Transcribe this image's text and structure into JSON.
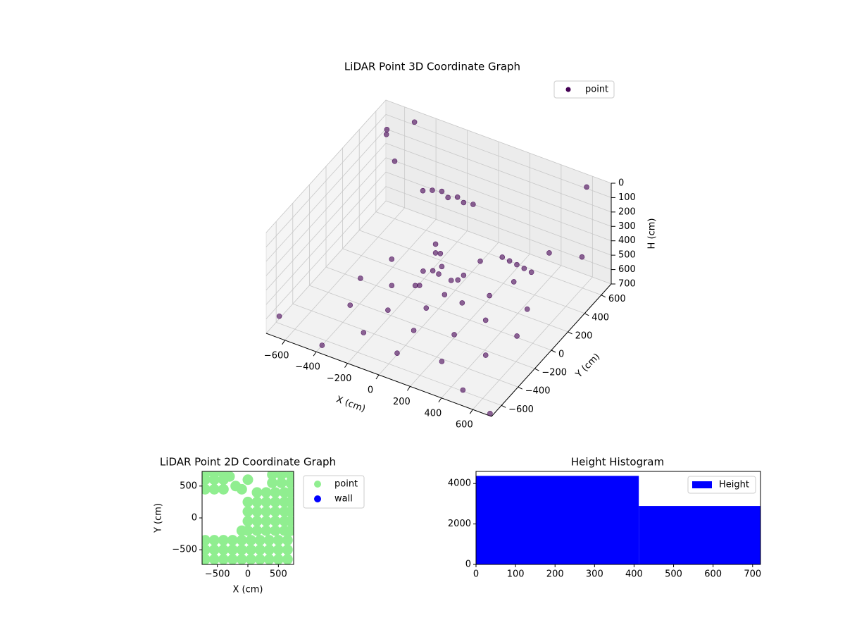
{
  "chart_data": [
    {
      "type": "scatter3d",
      "title": "LiDAR Point 3D Coordinate Graph",
      "x_label": "X (cm)",
      "y_label": "Y (cm)",
      "z_label": "H (cm)",
      "xlim": [
        -720,
        720
      ],
      "ylim": [
        -720,
        720
      ],
      "zlim": [
        700,
        0
      ],
      "xticks": [
        {
          "value": -600,
          "label": "−600"
        },
        {
          "value": -400,
          "label": "−400"
        },
        {
          "value": -200,
          "label": "−200"
        },
        0,
        200,
        400,
        600
      ],
      "yticks": [
        {
          "value": -600,
          "label": "−600"
        },
        {
          "value": -400,
          "label": "−400"
        },
        {
          "value": -200,
          "label": "−200"
        },
        0,
        200,
        400,
        600
      ],
      "zticks": [
        0,
        100,
        200,
        300,
        400,
        500,
        600,
        700
      ],
      "grid": true,
      "legend": "upper right",
      "series": [
        {
          "name": "point",
          "color": "#440154",
          "x": [
            500,
            433,
            250,
            0,
            -250,
            -433,
            -500,
            -433,
            -250,
            0,
            250,
            433,
            300,
            212,
            0,
            -212,
            -300,
            -212,
            0,
            212,
            150,
            0,
            -150,
            0,
            80,
            -80,
            -80,
            80,
            0,
            20,
            0,
            -20,
            -200,
            -150,
            -100,
            -50,
            0,
            -250,
            50,
            300,
            320,
            340,
            360,
            380,
            -650,
            -600,
            -500,
            600,
            -700,
            700,
            -600,
            600,
            650,
            -400,
            500
          ],
          "y": [
            0,
            250,
            433,
            500,
            433,
            250,
            0,
            -250,
            -433,
            -500,
            -433,
            -250,
            0,
            212,
            300,
            212,
            0,
            -212,
            -300,
            -212,
            0,
            150,
            0,
            -150,
            80,
            80,
            -80,
            -80,
            0,
            0,
            20,
            0,
            300,
            320,
            300,
            320,
            300,
            280,
            320,
            200,
            250,
            300,
            350,
            400,
            600,
            500,
            650,
            650,
            -600,
            -700,
            600,
            200,
            500,
            -650,
            -650
          ],
          "z": [
            690,
            690,
            690,
            690,
            690,
            690,
            690,
            690,
            690,
            690,
            690,
            690,
            660,
            660,
            660,
            660,
            660,
            660,
            660,
            660,
            600,
            600,
            600,
            600,
            520,
            520,
            520,
            520,
            460,
            400,
            330,
            260,
            150,
            150,
            160,
            150,
            155,
            160,
            160,
            350,
            400,
            450,
            500,
            550,
            100,
            50,
            20,
            30,
            650,
            700,
            300,
            200,
            400,
            700,
            650
          ]
        }
      ]
    },
    {
      "type": "scatter",
      "title": "LiDAR Point 2D Coordinate Graph",
      "x_label": "X (cm)",
      "y_label": "Y (cm)",
      "xlim": [
        -750,
        750
      ],
      "ylim": [
        -730,
        730
      ],
      "xticks": [
        {
          "value": -500,
          "label": "−500"
        },
        0,
        500
      ],
      "yticks": [
        {
          "value": -500,
          "label": "−500"
        },
        0,
        500
      ],
      "legend": "outside right",
      "series": [
        {
          "name": "point",
          "color": "#90ee90",
          "x": [
            -700,
            -550,
            -400,
            -250,
            -100,
            50,
            200,
            350,
            500,
            650,
            -700,
            -550,
            -400,
            -250,
            -100,
            50,
            200,
            350,
            500,
            650,
            -700,
            -550,
            -400,
            -250,
            -100,
            50,
            200,
            350,
            500,
            650,
            0,
            150,
            300,
            450,
            600,
            700,
            0,
            150,
            300,
            450,
            600,
            700,
            0,
            150,
            300,
            450,
            600,
            700,
            0,
            150,
            300,
            450,
            600,
            700,
            150,
            300,
            450,
            600,
            700,
            -100,
            400,
            550,
            700,
            400,
            550,
            700,
            -700,
            -550,
            -400,
            -700,
            -550,
            -400,
            -700,
            -550,
            -400,
            -300,
            -200,
            -100,
            0
          ],
          "y": [
            -650,
            -650,
            -650,
            -650,
            -650,
            -650,
            -650,
            -650,
            -650,
            -650,
            -500,
            -500,
            -500,
            -500,
            -500,
            -500,
            -500,
            -500,
            -500,
            -500,
            -350,
            -350,
            -350,
            -350,
            -350,
            -350,
            -350,
            -350,
            -350,
            -350,
            -200,
            -200,
            -200,
            -200,
            -200,
            -200,
            -50,
            -50,
            -50,
            -50,
            -50,
            -50,
            100,
            100,
            100,
            100,
            100,
            100,
            250,
            250,
            250,
            250,
            250,
            250,
            400,
            400,
            400,
            400,
            400,
            -200,
            550,
            550,
            550,
            680,
            680,
            680,
            450,
            450,
            450,
            600,
            600,
            600,
            700,
            700,
            700,
            650,
            500,
            450,
            600
          ]
        },
        {
          "name": "wall",
          "color": "#0000ff",
          "x": [],
          "y": []
        }
      ]
    },
    {
      "type": "histogram",
      "title": "Height Histogram",
      "bins": [
        0,
        412,
        720
      ],
      "xlim": [
        0,
        720
      ],
      "ylim": [
        0,
        4600
      ],
      "xticks": [
        0,
        100,
        200,
        300,
        400,
        500,
        600,
        700
      ],
      "yticks": [
        0,
        2000,
        4000
      ],
      "legend": "upper right",
      "series": [
        {
          "name": "Height",
          "color": "#0000ff",
          "values": [
            4380,
            2890
          ]
        }
      ]
    }
  ]
}
